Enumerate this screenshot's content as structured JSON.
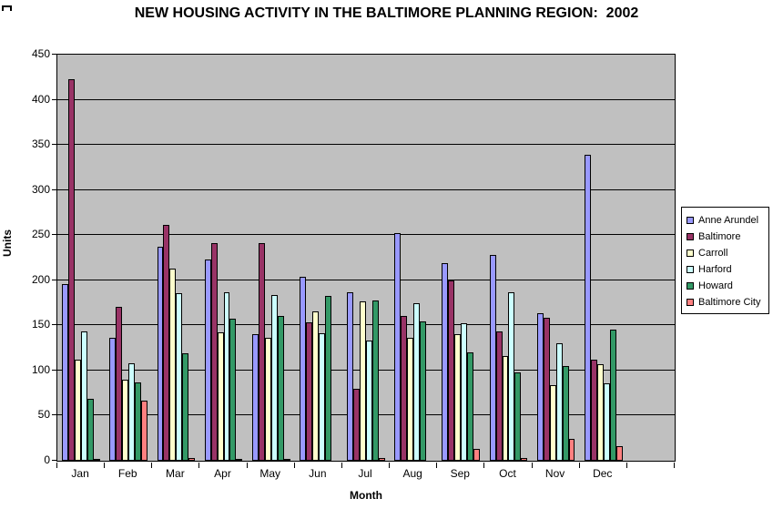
{
  "chart_data": {
    "type": "bar",
    "title": "NEW HOUSING ACTIVITY IN THE BALTIMORE PLANNING REGION:  2002",
    "xlabel": "Month",
    "ylabel": "Units",
    "ylim": [
      0,
      450
    ],
    "ytick_step": 50,
    "yticks": [
      0,
      50,
      100,
      150,
      200,
      250,
      300,
      350,
      400,
      450
    ],
    "grid": true,
    "legend_position": "right",
    "plot_bg": "#C0C0C0",
    "categories": [
      "Jan",
      "Feb",
      "Mar",
      "Apr",
      "May",
      "Jun",
      "Jul",
      "Aug",
      "Sep",
      "Oct",
      "Nov",
      "Dec"
    ],
    "extra_category_slots": 1,
    "series": [
      {
        "name": "Anne Arundel",
        "color": "#9999FF",
        "values": [
          196,
          136,
          237,
          223,
          140,
          204,
          187,
          252,
          219,
          228,
          163,
          339
        ]
      },
      {
        "name": "Baltimore",
        "color": "#993366",
        "values": [
          423,
          171,
          261,
          241,
          241,
          153,
          80,
          160,
          200,
          143,
          158,
          112
        ]
      },
      {
        "name": "Carroll",
        "color": "#FFFFCC",
        "values": [
          112,
          90,
          213,
          142,
          136,
          165,
          177,
          136,
          140,
          116,
          84,
          107
        ]
      },
      {
        "name": "Harford",
        "color": "#CCFFFF",
        "values": [
          143,
          108,
          186,
          187,
          184,
          141,
          133,
          175,
          152,
          187,
          130,
          86
        ]
      },
      {
        "name": "Howard",
        "color": "#339966",
        "values": [
          69,
          87,
          119,
          157,
          160,
          183,
          178,
          154,
          120,
          98,
          105,
          145
        ]
      },
      {
        "name": "Baltimore City",
        "color": "#FF8080",
        "values": [
          1,
          67,
          3,
          2,
          2,
          0,
          3,
          0,
          13,
          3,
          24,
          16
        ]
      }
    ]
  }
}
